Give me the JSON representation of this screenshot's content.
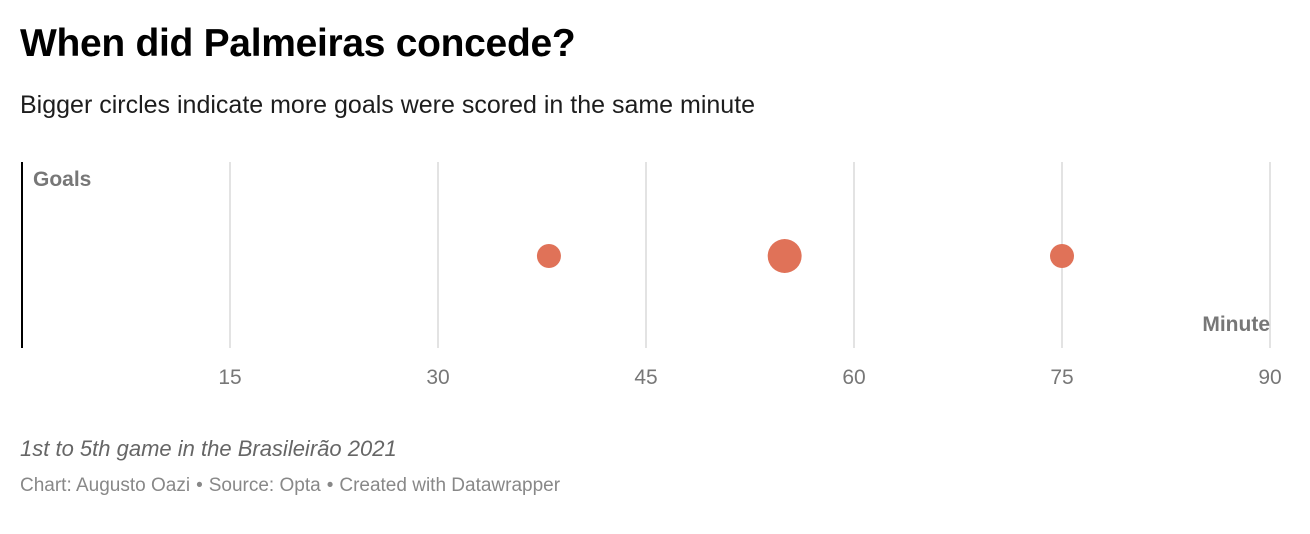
{
  "header": {
    "title": "When did Palmeiras concede?",
    "subtitle": "Bigger circles indicate more goals were scored in the same minute"
  },
  "chart_data": {
    "type": "scatter",
    "title": "When did Palmeiras concede?",
    "subtitle": "Bigger circles indicate more goals were scored in the same minute",
    "xlabel": "Minute",
    "ylabel": "Goals",
    "xlim": [
      0,
      90
    ],
    "xticks": [
      15,
      30,
      45,
      60,
      75,
      90
    ],
    "grid": true,
    "points": [
      {
        "minute": 38,
        "goals": 1
      },
      {
        "minute": 55,
        "goals": 2
      },
      {
        "minute": 75,
        "goals": 1
      }
    ],
    "point_color": "#e07258"
  },
  "notes": "1st to 5th game in the Brasileirão 2021",
  "footer": {
    "chart_label": "Chart:",
    "author": "Augusto Oazi",
    "source_label": "Source:",
    "source": "Opta",
    "credit": "Created with Datawrapper",
    "separator": "•"
  },
  "colors": {
    "accent": "#e07258",
    "grid": "#e3e3e3",
    "axis": "#000000",
    "tick_text": "#777777",
    "axis_label": "#777777"
  }
}
